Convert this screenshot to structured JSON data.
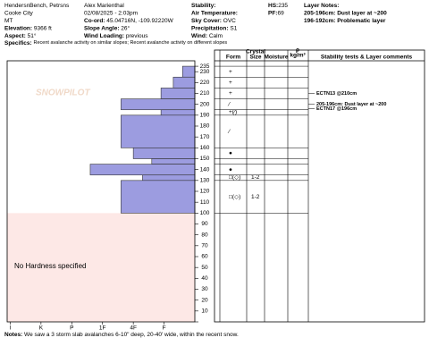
{
  "header": {
    "rows": [
      [
        {
          "value": "HendersnBench, Petrsns"
        },
        {
          "value": "Alex Marienthal"
        },
        {
          "label": "Stability:"
        },
        {
          "label": "HS:",
          "value": "235"
        },
        {
          "label": "Layer Notes:"
        }
      ],
      [
        {
          "value": "Cooke City"
        },
        {
          "value": "02/08/2025 - 2:03pm"
        },
        {
          "label": "Air Temperature:"
        },
        {
          "label": "PF:",
          "value": "69"
        },
        {
          "value": "205-196cm: Dust layer at ~200"
        }
      ],
      [
        {
          "value": "MT"
        },
        {
          "label": "Co-ord:",
          "value": "45.04716N, -109.92220W"
        },
        {
          "label": "Sky Cover:",
          "value": "OVC"
        },
        {},
        {
          "value": "196-192cm: Problematic layer"
        }
      ],
      [
        {
          "label": "Elevation:",
          "value": "9366 ft"
        },
        {
          "label": "Slope Angle:",
          "value": "26°"
        },
        {
          "label": "Precipitation:",
          "value": "S1"
        },
        {},
        {}
      ],
      [
        {
          "label": "Aspect:",
          "value": "51°"
        },
        {
          "label": "Wind Loading:",
          "value": "previous"
        },
        {
          "label": "Wind:",
          "value": "Calm"
        },
        {},
        {}
      ]
    ],
    "specifics": {
      "label": "Specifics:",
      "value": "Recent avalanche activity on similar slopes; Recent avalanche activity on different slopes"
    }
  },
  "columns": {
    "form": "Form",
    "crystal": "Crystal",
    "size": "Size",
    "moisture": "Moisture",
    "rho": "ρ",
    "density_unit": "kg/m³",
    "comments": "Stability tests & Layer comments"
  },
  "notes": {
    "label": "Notes:",
    "value": "We saw a 3 storm slab avalanches 6-10\" deep, 20-40' wide, within the recent snow."
  },
  "chart_data": {
    "type": "snowprofile",
    "watermark": "SNOWPILOT",
    "annotation": "No Hardness specified",
    "no_hardness_top": 100,
    "color": "#9c9ce0",
    "ylim": [
      0,
      240
    ],
    "yticks": [
      0,
      10,
      20,
      30,
      40,
      50,
      60,
      70,
      80,
      90,
      100,
      110,
      120,
      130,
      140,
      150,
      160,
      170,
      180,
      190,
      200,
      210,
      220,
      230,
      235
    ],
    "xlim": [
      0,
      6.1
    ],
    "xticks": [
      {
        "value": 6,
        "label": "I"
      },
      {
        "value": 5,
        "label": "K"
      },
      {
        "value": 4,
        "label": "P"
      },
      {
        "value": 3,
        "label": "1F"
      },
      {
        "value": 2,
        "label": "4F"
      },
      {
        "value": 1,
        "label": "F"
      }
    ],
    "layers": [
      {
        "top": 235,
        "bottom": 225,
        "hardness": 0.4
      },
      {
        "top": 225,
        "bottom": 215,
        "hardness": 0.7
      },
      {
        "top": 215,
        "bottom": 205,
        "hardness": 1.1
      },
      {
        "top": 205,
        "bottom": 195,
        "hardness": 2.4
      },
      {
        "top": 195,
        "bottom": 190,
        "hardness": 1.1
      },
      {
        "top": 190,
        "bottom": 160,
        "hardness": 2.4
      },
      {
        "top": 160,
        "bottom": 150,
        "hardness": 2.0
      },
      {
        "top": 150,
        "bottom": 145,
        "hardness": 1.4
      },
      {
        "top": 145,
        "bottom": 135,
        "hardness": 3.4
      },
      {
        "top": 135,
        "bottom": 130,
        "hardness": 1.7
      },
      {
        "top": 130,
        "bottom": 100,
        "hardness": 2.4
      }
    ],
    "grains": [
      {
        "height": 230,
        "form": "+"
      },
      {
        "height": 220,
        "form": "+"
      },
      {
        "height": 210,
        "form": "+"
      },
      {
        "height": 200,
        "form": "⁄"
      },
      {
        "height": 193,
        "form": "+(⁄)"
      },
      {
        "height": 175,
        "form": "⁄"
      },
      {
        "height": 155,
        "form": "●"
      },
      {
        "height": 140,
        "form": "●"
      },
      {
        "height": 133,
        "form": "□(◇)",
        "size": "1-2"
      },
      {
        "height": 115,
        "form": "□(◇)",
        "size": "1-2"
      }
    ],
    "stability": [
      {
        "height": 210,
        "text": "ECTN13 @210cm"
      },
      {
        "height": 200,
        "text": "205-196cm: Dust layer at ~200"
      },
      {
        "height": 196,
        "text": "ECTN17 @196cm"
      }
    ]
  }
}
